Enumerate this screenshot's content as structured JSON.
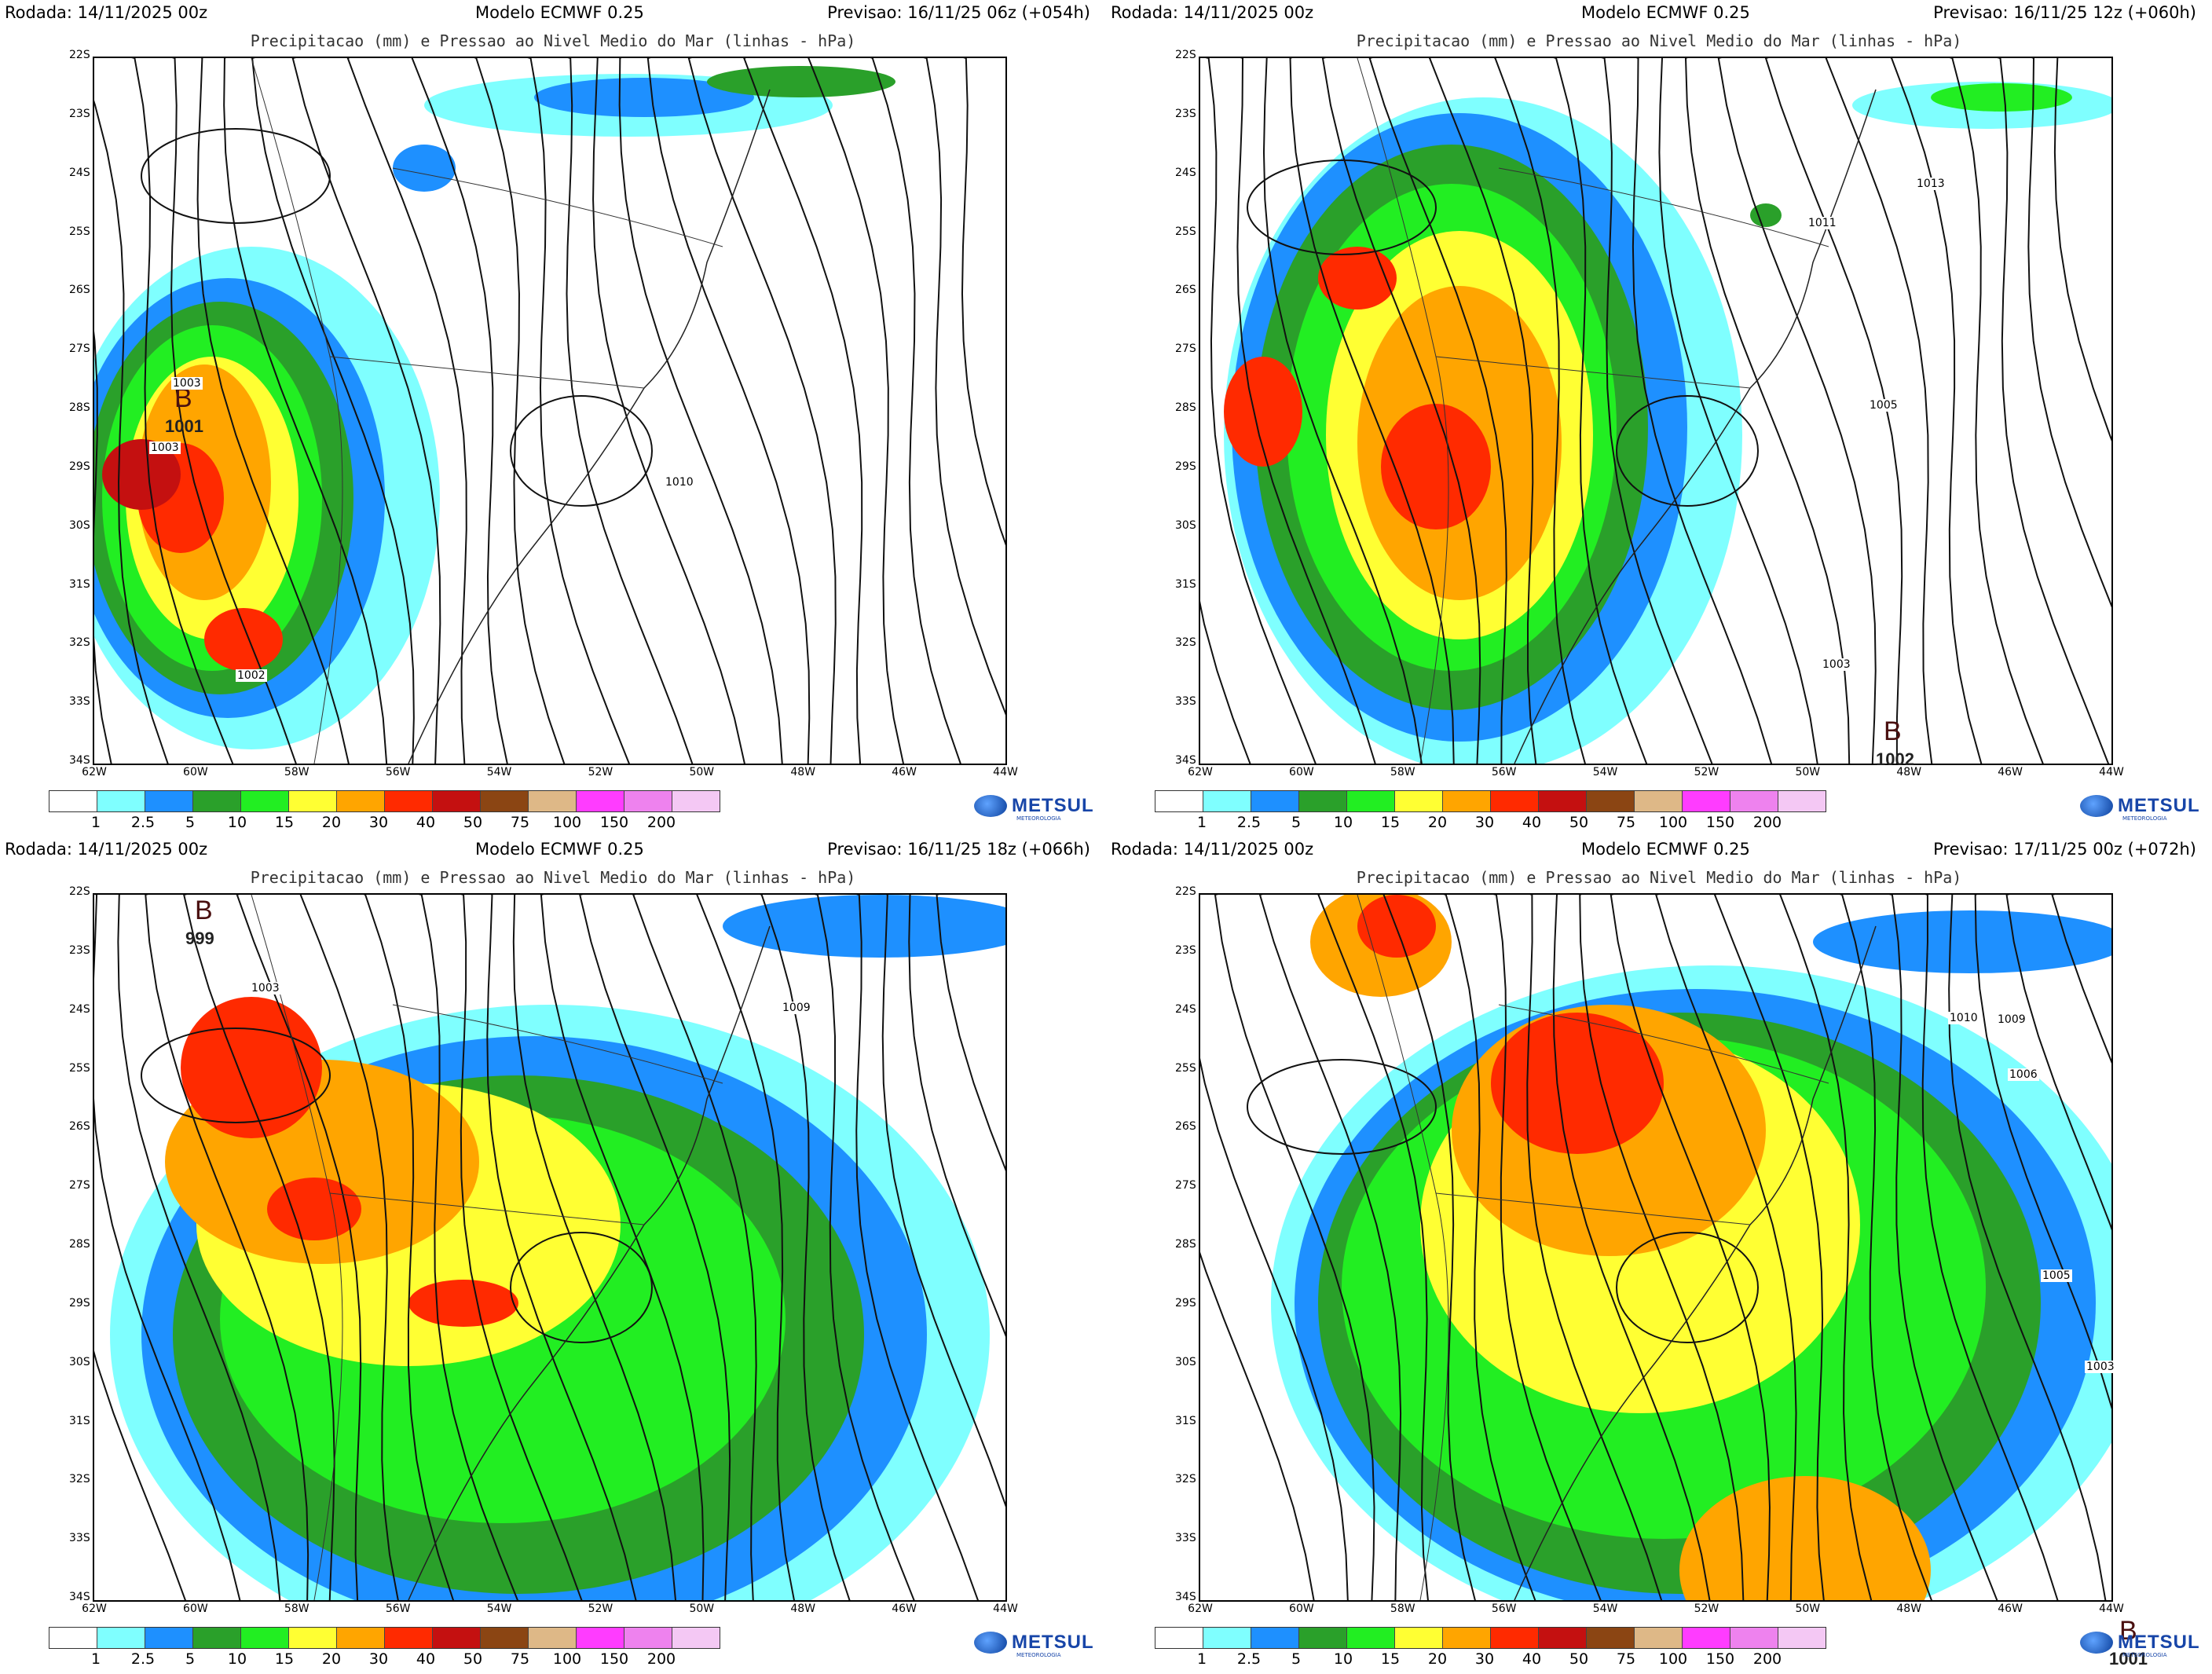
{
  "panels": [
    {
      "rodada": "Rodada: 14/11/2025 00z",
      "modelo": "Modelo ECMWF 0.25",
      "previsao": "Previsao: 16/11/25 06z (+054h)",
      "subtitle": "Precipitacao (mm) e Pressao ao Nivel Medio do Mar (linhas - hPa)",
      "lows": [
        {
          "letter": "B",
          "value": "1001"
        }
      ],
      "isobar_labels": [
        "1003",
        "1003",
        "1010",
        "1002"
      ]
    },
    {
      "rodada": "Rodada: 14/11/2025 00z",
      "modelo": "Modelo ECMWF 0.25",
      "previsao": "Previsao: 16/11/25 12z (+060h)",
      "subtitle": "Precipitacao (mm) e Pressao ao Nivel Medio do Mar (linhas - hPa)",
      "lows": [
        {
          "letter": "B",
          "value": "1002"
        }
      ],
      "isobar_labels": [
        "1013",
        "1011",
        "1005",
        "1003"
      ]
    },
    {
      "rodada": "Rodada: 14/11/2025 00z",
      "modelo": "Modelo ECMWF 0.25",
      "previsao": "Previsao: 16/11/25 18z (+066h)",
      "subtitle": "Precipitacao (mm) e Pressao ao Nivel Medio do Mar (linhas - hPa)",
      "lows": [
        {
          "letter": "B",
          "value": "999"
        }
      ],
      "isobar_labels": [
        "1003",
        "1009"
      ]
    },
    {
      "rodada": "Rodada: 14/11/2025 00z",
      "modelo": "Modelo ECMWF 0.25",
      "previsao": "Previsao: 17/11/25 00z (+072h)",
      "subtitle": "Precipitacao (mm) e Pressao ao Nivel Medio do Mar (linhas - hPa)",
      "lows": [
        {
          "letter": "B",
          "value": "1001"
        }
      ],
      "isobar_labels": [
        "1010",
        "1009",
        "1006",
        "1005",
        "1003"
      ]
    }
  ],
  "lat_ticks": [
    "22S",
    "23S",
    "24S",
    "25S",
    "26S",
    "27S",
    "28S",
    "29S",
    "30S",
    "31S",
    "32S",
    "33S",
    "34S"
  ],
  "lon_ticks": [
    "62W",
    "60W",
    "58W",
    "56W",
    "54W",
    "52W",
    "50W",
    "48W",
    "46W",
    "44W"
  ],
  "legend": {
    "labels": [
      "1",
      "2.5",
      "5",
      "10",
      "15",
      "20",
      "30",
      "40",
      "50",
      "75",
      "100",
      "150",
      "200"
    ],
    "colors": [
      "#ffffff",
      "#7fffff",
      "#1e90ff",
      "#2aa02a",
      "#22ee22",
      "#ffff33",
      "#ffa500",
      "#ff2a00",
      "#c41010",
      "#8b4513",
      "#deb887",
      "#ff3cff",
      "#ee82ee",
      "#f4c8f4"
    ]
  },
  "brand": {
    "name": "METSUL",
    "sub": "METEOROLOGIA"
  }
}
